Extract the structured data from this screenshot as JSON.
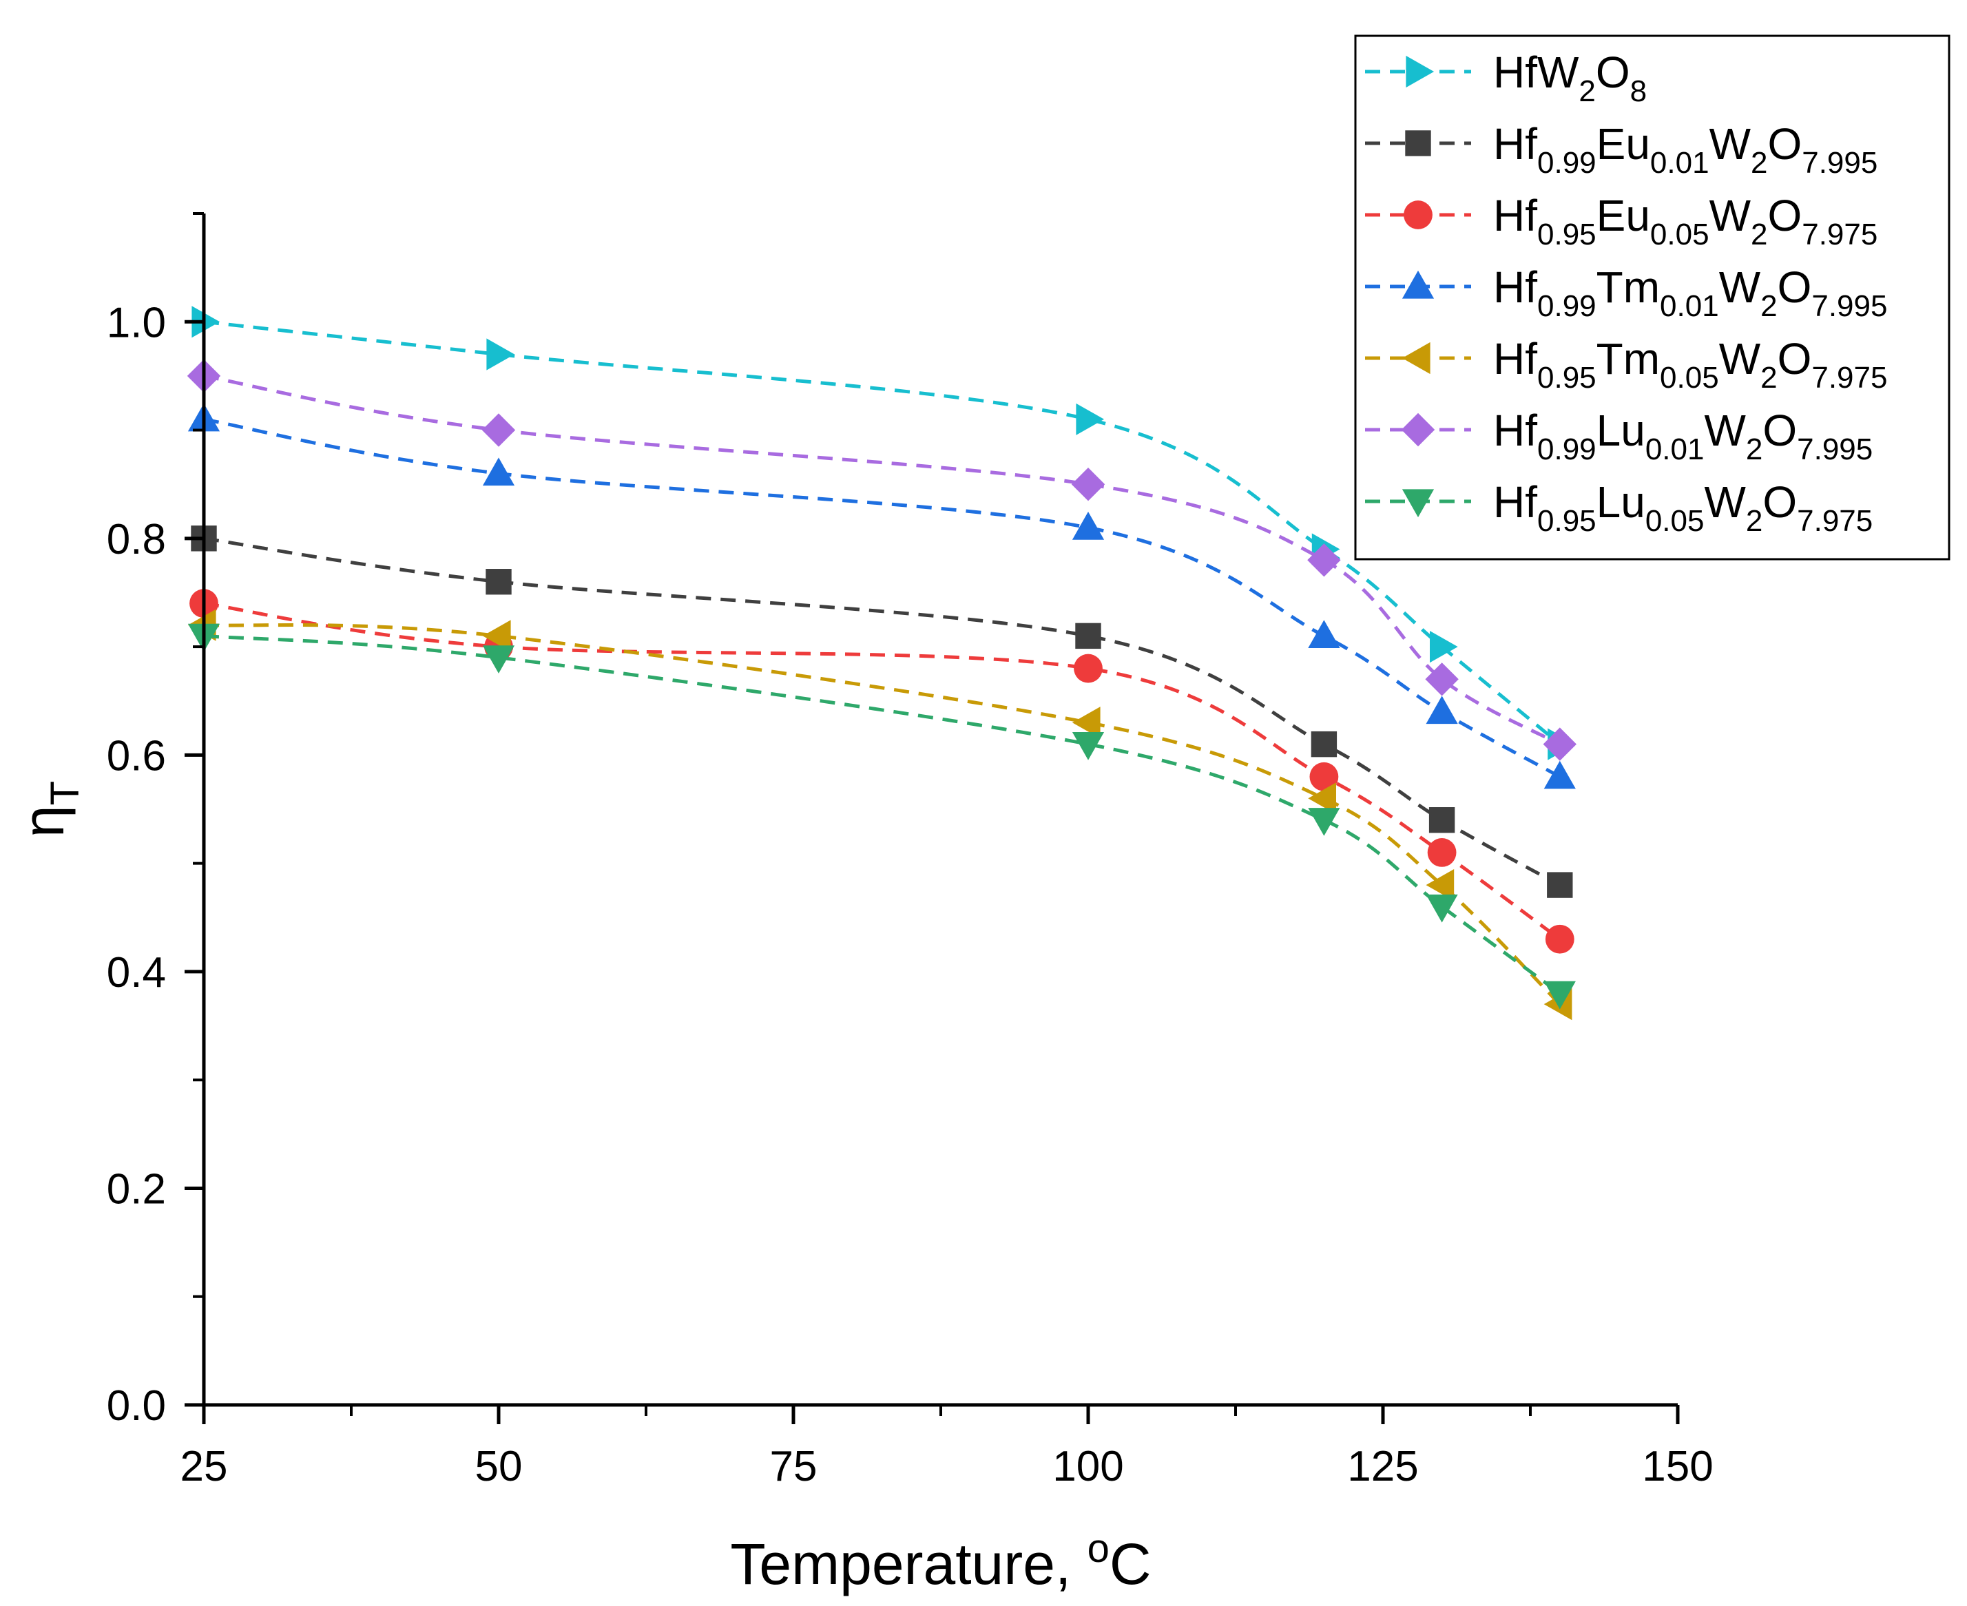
{
  "chart_data": {
    "type": "line",
    "title": "",
    "xlabel": "Temperature, °C",
    "xlabel_parts": {
      "main": "Temperature, ",
      "sup": "o",
      "unit": "C"
    },
    "ylabel": "ηT",
    "ylabel_parts": {
      "main": "η",
      "sub": "T"
    },
    "xlim": [
      25,
      150
    ],
    "ylim": [
      0.0,
      1.1
    ],
    "x_ticks": [
      25,
      50,
      75,
      100,
      125,
      150
    ],
    "x_tick_labels": [
      "25",
      "50",
      "75",
      "100",
      "125",
      "150"
    ],
    "y_ticks": [
      0.0,
      0.2,
      0.4,
      0.6,
      0.8,
      1.0
    ],
    "y_tick_labels": [
      "0.0",
      "0.2",
      "0.4",
      "0.6",
      "0.8",
      "1.0"
    ],
    "x_minor_step": 12.5,
    "y_minor_step": 0.1,
    "grid": false,
    "legend_position": "top-right",
    "line_style": "dashed",
    "x": [
      25,
      50,
      100,
      120,
      130,
      140
    ],
    "series": [
      {
        "name": "HfW2O8",
        "color": "#17BECF",
        "marker": "triangle-right",
        "label_parts": [
          [
            "Hf",
            ""
          ],
          [
            "W",
            ""
          ],
          [
            "2",
            "sub"
          ],
          [
            "O",
            ""
          ],
          [
            "8",
            "sub"
          ]
        ],
        "values": [
          1.0,
          0.97,
          0.91,
          0.79,
          0.7,
          0.61
        ]
      },
      {
        "name": "Hf0.99Eu0.01W2O7.995",
        "color": "#3F3F3F",
        "marker": "square",
        "label_parts": [
          [
            "Hf",
            ""
          ],
          [
            "0.99",
            "sub"
          ],
          [
            "Eu",
            ""
          ],
          [
            "0.01",
            "sub"
          ],
          [
            "W",
            ""
          ],
          [
            "2",
            "sub"
          ],
          [
            "O",
            ""
          ],
          [
            "7.995",
            "sub"
          ]
        ],
        "values": [
          0.8,
          0.76,
          0.71,
          0.61,
          0.54,
          0.48
        ]
      },
      {
        "name": "Hf0.95Eu0.05W2O7.975",
        "color": "#EE3B3B",
        "marker": "circle",
        "label_parts": [
          [
            "Hf",
            ""
          ],
          [
            "0.95",
            "sub"
          ],
          [
            "Eu",
            ""
          ],
          [
            "0.05",
            "sub"
          ],
          [
            "W",
            ""
          ],
          [
            "2",
            "sub"
          ],
          [
            "O",
            ""
          ],
          [
            "7.975",
            "sub"
          ]
        ],
        "values": [
          0.74,
          0.7,
          0.68,
          0.58,
          0.51,
          0.43
        ]
      },
      {
        "name": "Hf0.99Tm0.01W2O7.995",
        "color": "#1E6FE0",
        "marker": "triangle-up",
        "label_parts": [
          [
            "Hf",
            ""
          ],
          [
            "0.99",
            "sub"
          ],
          [
            "Tm",
            ""
          ],
          [
            "0.01",
            "sub"
          ],
          [
            "W",
            ""
          ],
          [
            "2",
            "sub"
          ],
          [
            "O",
            ""
          ],
          [
            "7.995",
            "sub"
          ]
        ],
        "values": [
          0.91,
          0.86,
          0.81,
          0.71,
          0.64,
          0.58
        ]
      },
      {
        "name": "Hf0.95Tm0.05W2O7.975",
        "color": "#C89A06",
        "marker": "triangle-left",
        "label_parts": [
          [
            "Hf",
            ""
          ],
          [
            "0.95",
            "sub"
          ],
          [
            "Tm",
            ""
          ],
          [
            "0.05",
            "sub"
          ],
          [
            "W",
            ""
          ],
          [
            "2",
            "sub"
          ],
          [
            "O",
            ""
          ],
          [
            "7.975",
            "sub"
          ]
        ],
        "values": [
          0.72,
          0.71,
          0.63,
          0.56,
          0.48,
          0.37
        ]
      },
      {
        "name": "Hf0.99Lu0.01W2O7.995",
        "color": "#A86BE0",
        "marker": "diamond",
        "label_parts": [
          [
            "Hf",
            ""
          ],
          [
            "0.99",
            "sub"
          ],
          [
            "Lu",
            ""
          ],
          [
            "0.01",
            "sub"
          ],
          [
            "W",
            ""
          ],
          [
            "2",
            "sub"
          ],
          [
            "O",
            ""
          ],
          [
            "7.995",
            "sub"
          ]
        ],
        "values": [
          0.95,
          0.9,
          0.85,
          0.78,
          0.67,
          0.61
        ]
      },
      {
        "name": "Hf0.95Lu0.05W2O7.975",
        "color": "#2EA86A",
        "marker": "triangle-down",
        "label_parts": [
          [
            "Hf",
            ""
          ],
          [
            "0.95",
            "sub"
          ],
          [
            "Lu",
            ""
          ],
          [
            "0.05",
            "sub"
          ],
          [
            "W",
            ""
          ],
          [
            "2",
            "sub"
          ],
          [
            "O",
            ""
          ],
          [
            "7.975",
            "sub"
          ]
        ],
        "values": [
          0.71,
          0.69,
          0.61,
          0.54,
          0.46,
          0.38
        ]
      }
    ]
  }
}
